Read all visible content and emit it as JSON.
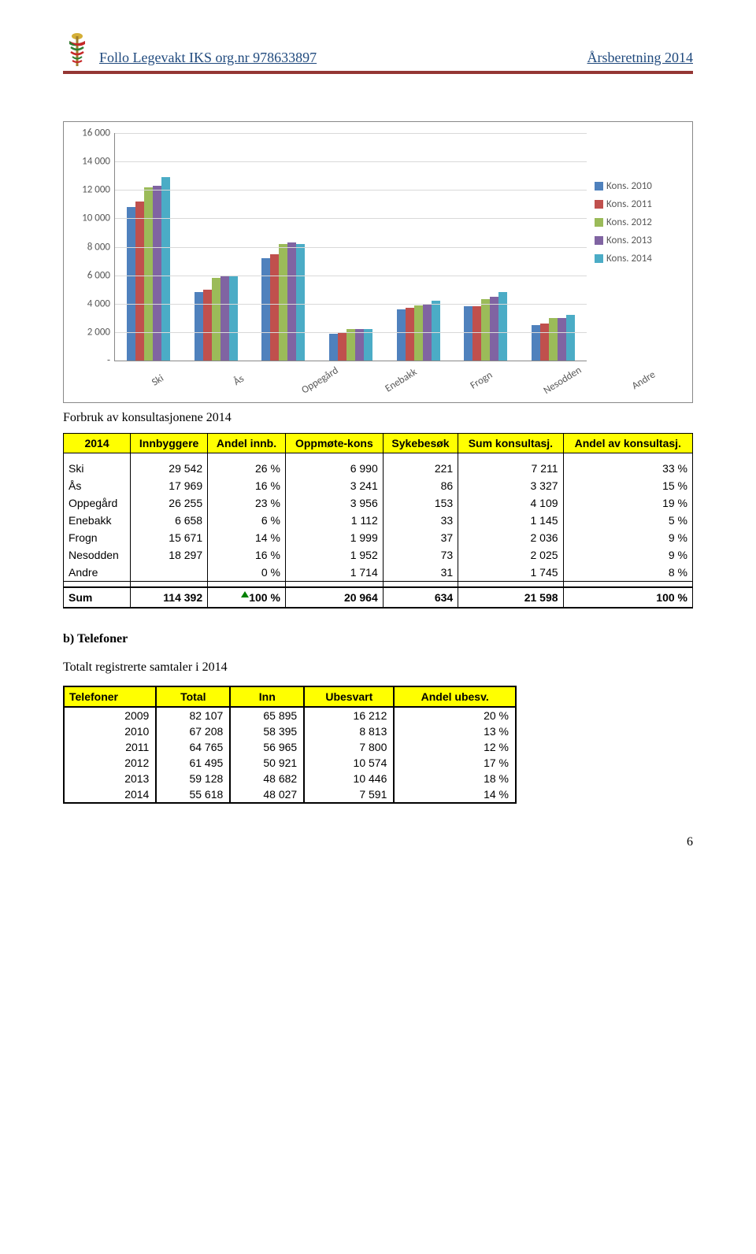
{
  "header": {
    "left": "Follo Legevakt IKS  org.nr 978633897",
    "right": "Årsberetning 2014"
  },
  "chart": {
    "type": "bar",
    "ymax": 16000,
    "ytick_step": 2000,
    "yticks": [
      "16 000",
      "14 000",
      "12 000",
      "10 000",
      "8 000",
      "6 000",
      "4 000",
      "2 000",
      "-"
    ],
    "categories": [
      "Ski",
      "Ås",
      "Oppegård",
      "Enebakk",
      "Frogn",
      "Nesodden",
      "Andre"
    ],
    "series": [
      {
        "label": "Kons. 2010",
        "color": "#4f81bd"
      },
      {
        "label": "Kons. 2011",
        "color": "#c0504d"
      },
      {
        "label": "Kons. 2012",
        "color": "#9bbb59"
      },
      {
        "label": "Kons. 2013",
        "color": "#8064a2"
      },
      {
        "label": "Kons. 2014",
        "color": "#4bacc6"
      }
    ],
    "data": [
      [
        10800,
        11200,
        12200,
        12300,
        12900
      ],
      [
        4800,
        5000,
        5800,
        5900,
        5900
      ],
      [
        7200,
        7500,
        8200,
        8300,
        8200
      ],
      [
        1900,
        2000,
        2200,
        2200,
        2200
      ],
      [
        3600,
        3700,
        3900,
        4000,
        4200
      ],
      [
        3800,
        3800,
        4300,
        4500,
        4800
      ],
      [
        2500,
        2600,
        3000,
        3000,
        3200
      ]
    ]
  },
  "section1_title": "Forbruk av konsultasjonene 2014",
  "table1": {
    "headers": [
      "2014",
      "Innbyggere",
      "Andel innb.",
      "Oppmøte-kons",
      "Sykebesøk",
      "Sum konsultasj.",
      "Andel av konsultasj."
    ],
    "rows": [
      [
        "Ski",
        "29 542",
        "26 %",
        "6 990",
        "221",
        "7 211",
        "33 %"
      ],
      [
        "Ås",
        "17 969",
        "16 %",
        "3 241",
        "86",
        "3 327",
        "15 %"
      ],
      [
        "Oppegård",
        "26 255",
        "23 %",
        "3 956",
        "153",
        "4 109",
        "19 %"
      ],
      [
        "Enebakk",
        "6 658",
        "6 %",
        "1 112",
        "33",
        "1 145",
        "5 %"
      ],
      [
        "Frogn",
        "15 671",
        "14 %",
        "1 999",
        "37",
        "2 036",
        "9 %"
      ],
      [
        "Nesodden",
        "18 297",
        "16 %",
        "1 952",
        "73",
        "2 025",
        "9 %"
      ],
      [
        "Andre",
        "",
        "0 %",
        "1 714",
        "31",
        "1 745",
        "8 %"
      ]
    ],
    "sum": [
      "Sum",
      "114 392",
      "100 %",
      "20 964",
      "634",
      "21 598",
      "100 %"
    ]
  },
  "sectionB": {
    "label": "b)    Telefoner",
    "subtitle": "Totalt registrerte samtaler i 2014"
  },
  "table2": {
    "headers": [
      "Telefoner",
      "Total",
      "Inn",
      "Ubesvart",
      "Andel ubesv."
    ],
    "rows": [
      [
        "2009",
        "82 107",
        "65 895",
        "16 212",
        "20 %"
      ],
      [
        "2010",
        "67 208",
        "58 395",
        "8 813",
        "13 %"
      ],
      [
        "2011",
        "64 765",
        "56 965",
        "7 800",
        "12 %"
      ],
      [
        "2012",
        "61 495",
        "50 921",
        "10 574",
        "17 %"
      ],
      [
        "2013",
        "59 128",
        "48 682",
        "10 446",
        "18 %"
      ],
      [
        "2014",
        "55 618",
        "48 027",
        "7 591",
        "14 %"
      ]
    ]
  },
  "page_number": "6"
}
